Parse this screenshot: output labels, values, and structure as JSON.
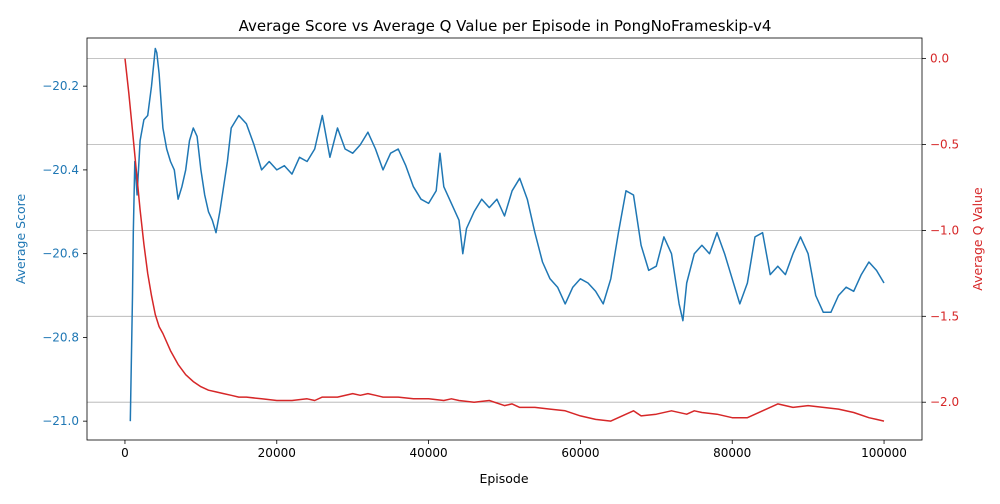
{
  "chart_data": {
    "type": "line",
    "title": "Average Score vs Average Q Value per Episode in PongNoFrameskip-v4",
    "xlabel": "Episode",
    "ylabel_left": "Average Score",
    "ylabel_right": "Average Q Value",
    "xlim": [
      -5000,
      105000
    ],
    "ylim_left": [
      -21.045,
      -20.085
    ],
    "ylim_right": [
      -2.22,
      0.12
    ],
    "x_ticks": [
      0,
      20000,
      40000,
      60000,
      80000,
      100000
    ],
    "y_ticks_left": [
      -21.0,
      -20.8,
      -20.6,
      -20.4,
      -20.2
    ],
    "y_ticks_right": [
      -2.0,
      -1.5,
      -1.0,
      -0.5,
      0.0
    ],
    "grid": "horizontal (right axis)",
    "colors": {
      "score": "#1f77b4",
      "q_value": "#d62728",
      "grid": "#b0b0b0",
      "axis": "#000000"
    },
    "series": [
      {
        "axis": "left",
        "color": "#1f77b4",
        "x": [
          700,
          1000,
          1100,
          1300,
          1600,
          2000,
          2500,
          3000,
          3500,
          4000,
          4200,
          4500,
          5000,
          5500,
          6000,
          6500,
          7000,
          7500,
          8000,
          8500,
          9000,
          9500,
          10000,
          10500,
          11000,
          11500,
          12000,
          12500,
          13000,
          13500,
          14000,
          15000,
          16000,
          17000,
          18000,
          19000,
          20000,
          21000,
          22000,
          23000,
          24000,
          25000,
          26000,
          27000,
          28000,
          29000,
          30000,
          31000,
          32000,
          33000,
          34000,
          35000,
          36000,
          37000,
          38000,
          39000,
          40000,
          41000,
          41500,
          42000,
          43000,
          44000,
          44500,
          45000,
          46000,
          47000,
          48000,
          49000,
          50000,
          51000,
          52000,
          53000,
          54000,
          55000,
          56000,
          57000,
          58000,
          59000,
          60000,
          61000,
          62000,
          63000,
          64000,
          65000,
          66000,
          67000,
          68000,
          69000,
          70000,
          71000,
          72000,
          73000,
          73500,
          74000,
          75000,
          76000,
          77000,
          78000,
          79000,
          80000,
          81000,
          82000,
          83000,
          84000,
          85000,
          86000,
          87000,
          88000,
          89000,
          90000,
          91000,
          92000,
          93000,
          94000,
          95000,
          96000,
          97000,
          98000,
          99000,
          100000
        ],
        "values": [
          -21.0,
          -20.7,
          -20.55,
          -20.38,
          -20.46,
          -20.33,
          -20.28,
          -20.27,
          -20.2,
          -20.11,
          -20.12,
          -20.17,
          -20.3,
          -20.35,
          -20.38,
          -20.4,
          -20.47,
          -20.44,
          -20.4,
          -20.33,
          -20.3,
          -20.32,
          -20.4,
          -20.46,
          -20.5,
          -20.52,
          -20.55,
          -20.5,
          -20.44,
          -20.38,
          -20.3,
          -20.27,
          -20.29,
          -20.34,
          -20.4,
          -20.38,
          -20.4,
          -20.39,
          -20.41,
          -20.37,
          -20.38,
          -20.35,
          -20.27,
          -20.37,
          -20.3,
          -20.35,
          -20.36,
          -20.34,
          -20.31,
          -20.35,
          -20.4,
          -20.36,
          -20.35,
          -20.39,
          -20.44,
          -20.47,
          -20.48,
          -20.45,
          -20.36,
          -20.44,
          -20.48,
          -20.52,
          -20.6,
          -20.54,
          -20.5,
          -20.47,
          -20.49,
          -20.47,
          -20.51,
          -20.45,
          -20.42,
          -20.47,
          -20.55,
          -20.62,
          -20.66,
          -20.68,
          -20.72,
          -20.68,
          -20.66,
          -20.67,
          -20.69,
          -20.72,
          -20.66,
          -20.55,
          -20.45,
          -20.46,
          -20.58,
          -20.64,
          -20.63,
          -20.56,
          -20.6,
          -20.72,
          -20.76,
          -20.67,
          -20.6,
          -20.58,
          -20.6,
          -20.55,
          -20.6,
          -20.66,
          -20.72,
          -20.67,
          -20.56,
          -20.55,
          -20.65,
          -20.63,
          -20.65,
          -20.6,
          -20.56,
          -20.6,
          -20.7,
          -20.74,
          -20.74,
          -20.7,
          -20.68,
          -20.69,
          -20.65,
          -20.62,
          -20.64,
          -20.67
        ]
      },
      {
        "axis": "right",
        "color": "#d62728",
        "x": [
          0,
          500,
          1000,
          1500,
          2000,
          2500,
          3000,
          3500,
          4000,
          4500,
          5000,
          6000,
          7000,
          8000,
          9000,
          10000,
          11000,
          12000,
          13000,
          14000,
          15000,
          16000,
          18000,
          20000,
          22000,
          24000,
          25000,
          26000,
          28000,
          30000,
          31000,
          32000,
          33000,
          34000,
          36000,
          38000,
          40000,
          42000,
          43000,
          44000,
          46000,
          48000,
          50000,
          51000,
          52000,
          54000,
          56000,
          58000,
          60000,
          62000,
          64000,
          66000,
          67000,
          68000,
          70000,
          72000,
          74000,
          75000,
          76000,
          78000,
          80000,
          82000,
          84000,
          86000,
          88000,
          90000,
          92000,
          94000,
          96000,
          98000,
          99000,
          100000
        ],
        "values": [
          0.0,
          -0.2,
          -0.42,
          -0.65,
          -0.88,
          -1.08,
          -1.25,
          -1.38,
          -1.49,
          -1.56,
          -1.6,
          -1.7,
          -1.78,
          -1.84,
          -1.88,
          -1.91,
          -1.93,
          -1.94,
          -1.95,
          -1.96,
          -1.97,
          -1.97,
          -1.98,
          -1.99,
          -1.99,
          -1.98,
          -1.99,
          -1.97,
          -1.97,
          -1.95,
          -1.96,
          -1.95,
          -1.96,
          -1.97,
          -1.97,
          -1.98,
          -1.98,
          -1.99,
          -1.98,
          -1.99,
          -2.0,
          -1.99,
          -2.02,
          -2.01,
          -2.03,
          -2.03,
          -2.04,
          -2.05,
          -2.08,
          -2.1,
          -2.11,
          -2.07,
          -2.05,
          -2.08,
          -2.07,
          -2.05,
          -2.07,
          -2.05,
          -2.06,
          -2.07,
          -2.09,
          -2.09,
          -2.05,
          -2.01,
          -2.03,
          -2.02,
          -2.03,
          -2.04,
          -2.06,
          -2.09,
          -2.1,
          -2.11
        ]
      }
    ]
  }
}
